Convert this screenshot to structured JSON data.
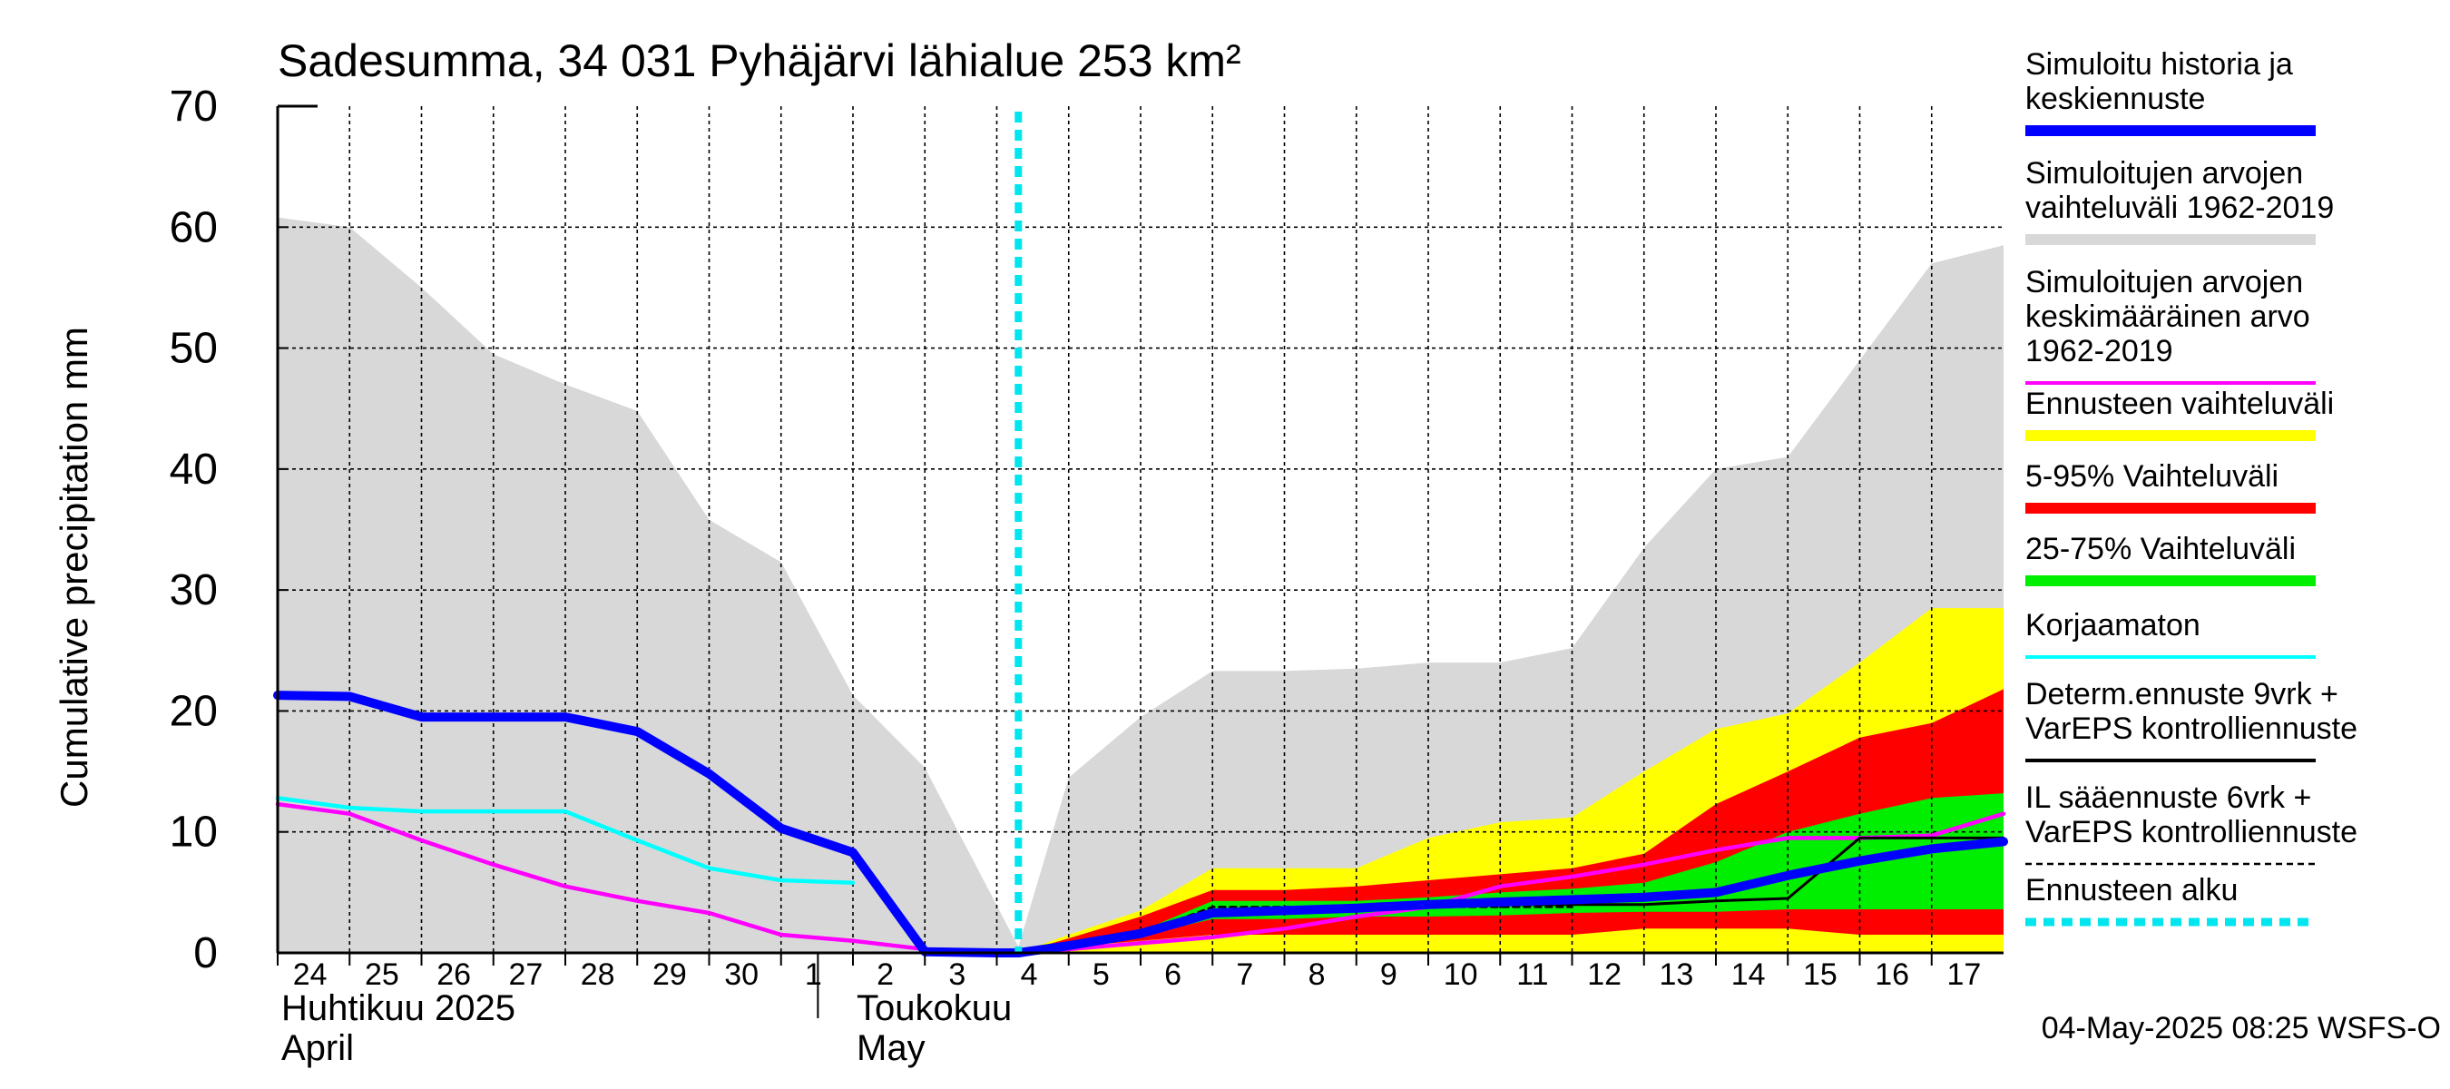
{
  "chart_data": {
    "type": "area",
    "title": "Sadesumma, 34 031 Pyhäjärvi lähialue 253 km²",
    "ylabel": "Cumulative precipitation   mm",
    "ylim": [
      0,
      70
    ],
    "yticks": [
      0,
      10,
      20,
      30,
      40,
      50,
      60,
      70
    ],
    "x_day_ticks": [
      "24",
      "25",
      "26",
      "27",
      "28",
      "29",
      "30",
      "1",
      "2",
      "3",
      "4",
      "5",
      "6",
      "7",
      "8",
      "9",
      "10",
      "11",
      "12",
      "13",
      "14",
      "15",
      "16",
      "17"
    ],
    "x_month_labels": [
      {
        "fi": "Huhtikuu  2025",
        "en": "April"
      },
      {
        "fi": "Toukokuu",
        "en": "May"
      }
    ],
    "grid": true,
    "legend_position": "right",
    "forecast_start_day": 10.3,
    "colors": {
      "history": "#0000ff",
      "range": "#d8d8d8",
      "mean": "#ff00ff",
      "forecast_range": "#ffff00",
      "p5_95": "#ff0000",
      "p25_75": "#00ee00",
      "uncorrected": "#00ffff",
      "determ": "#000000",
      "il": "#000000",
      "forecast_start": "#00e5ee"
    },
    "series": {
      "range_upper": {
        "x": [
          0,
          1,
          2,
          3,
          4,
          5,
          6,
          7,
          8,
          9,
          10.3,
          11,
          12,
          13,
          14,
          15,
          16,
          17,
          18,
          19,
          20,
          21,
          22,
          23,
          24
        ],
        "y": [
          60.8,
          60.0,
          55.0,
          49.5,
          47.0,
          44.8,
          35.8,
          32.3,
          21.3,
          15.3,
          0.5,
          14.5,
          19.5,
          23.3,
          23.3,
          23.5,
          24.0,
          24.0,
          25.2,
          33.5,
          40.0,
          41.0,
          49.0,
          57.0,
          58.5
        ]
      },
      "range_lower": {
        "x": [
          0,
          24
        ],
        "y": [
          0,
          0
        ]
      },
      "history": {
        "x": [
          0,
          1,
          2,
          3,
          4,
          5,
          6,
          7,
          8,
          9,
          10,
          10.3
        ],
        "y": [
          21.3,
          21.2,
          19.5,
          19.5,
          19.5,
          18.3,
          14.8,
          10.3,
          8.3,
          0.1,
          0.0,
          0.0
        ]
      },
      "uncorrected": {
        "x": [
          0,
          1,
          2,
          3,
          4,
          5,
          6,
          7,
          8
        ],
        "y": [
          12.8,
          12.0,
          11.7,
          11.7,
          11.7,
          9.3,
          7.0,
          6.0,
          5.8
        ]
      },
      "mean": {
        "x": [
          0,
          1,
          2,
          3,
          4,
          5,
          6,
          7,
          8,
          9,
          10,
          11,
          12,
          13,
          14,
          15,
          16,
          17,
          18,
          19,
          20,
          21,
          22,
          23,
          24
        ],
        "y": [
          12.3,
          11.5,
          9.3,
          7.3,
          5.5,
          4.3,
          3.3,
          1.5,
          1.0,
          0.3,
          0.0,
          0.3,
          0.8,
          1.3,
          2.0,
          3.0,
          3.8,
          5.5,
          6.3,
          7.3,
          8.5,
          9.5,
          9.5,
          9.7,
          11.5
        ]
      },
      "forecast_max": {
        "x": [
          10.3,
          11,
          12,
          13,
          14,
          15,
          16,
          17,
          18,
          19,
          20,
          21,
          22,
          23,
          24
        ],
        "y": [
          0,
          1.5,
          3.5,
          7.0,
          7.0,
          7.0,
          9.5,
          10.8,
          11.2,
          15.0,
          18.5,
          19.8,
          24.0,
          28.5,
          28.5
        ]
      },
      "forecast_min": {
        "x": [
          10.3,
          24
        ],
        "y": [
          0,
          0
        ]
      },
      "p95": {
        "x": [
          10.3,
          11,
          12,
          13,
          14,
          15,
          16,
          17,
          18,
          19,
          20,
          21,
          22,
          23,
          24
        ],
        "y": [
          0,
          1.2,
          3.0,
          5.2,
          5.2,
          5.5,
          6.0,
          6.5,
          7.0,
          8.2,
          12.3,
          15.0,
          17.8,
          19.0,
          21.8
        ]
      },
      "p5": {
        "x": [
          10.3,
          11,
          12,
          13,
          14,
          15,
          16,
          17,
          18,
          19,
          20,
          21,
          22,
          23,
          24
        ],
        "y": [
          0,
          0.5,
          1.0,
          1.5,
          1.5,
          1.5,
          1.5,
          1.5,
          1.5,
          2.0,
          2.0,
          2.0,
          1.5,
          1.5,
          1.5
        ]
      },
      "p75": {
        "x": [
          10.3,
          11,
          12,
          13,
          14,
          15,
          16,
          17,
          18,
          19,
          20,
          21,
          22,
          23,
          24
        ],
        "y": [
          0,
          0.8,
          1.8,
          4.3,
          4.3,
          4.3,
          4.6,
          5.0,
          5.3,
          5.8,
          7.5,
          10.0,
          11.5,
          12.8,
          13.2
        ]
      },
      "p25": {
        "x": [
          10.3,
          11,
          12,
          13,
          14,
          15,
          16,
          17,
          18,
          19,
          20,
          21,
          22,
          23,
          24
        ],
        "y": [
          0,
          0.6,
          1.4,
          2.8,
          2.8,
          3.0,
          3.0,
          3.1,
          3.3,
          3.4,
          3.4,
          3.6,
          3.6,
          3.6,
          3.6
        ]
      },
      "determ": {
        "x": [
          10.3,
          11,
          12,
          13,
          14,
          15,
          16,
          17,
          18,
          19,
          20,
          21,
          22,
          23,
          24
        ],
        "y": [
          0,
          0.8,
          1.5,
          3.5,
          3.7,
          3.8,
          4.0,
          4.0,
          4.0,
          4.0,
          4.3,
          4.5,
          9.5,
          9.5,
          9.5
        ]
      },
      "il": {
        "x": [
          10.3,
          11,
          12,
          13,
          14,
          15,
          16,
          17,
          18
        ],
        "y": [
          0,
          0.8,
          1.6,
          3.8,
          3.8,
          3.8,
          3.8,
          3.8,
          3.8
        ]
      },
      "median": {
        "x": [
          10.3,
          11,
          12,
          13,
          14,
          15,
          16,
          17,
          18,
          19,
          20,
          21,
          22,
          23,
          24
        ],
        "y": [
          0,
          0.6,
          1.6,
          3.3,
          3.5,
          3.7,
          4.0,
          4.2,
          4.4,
          4.6,
          5.0,
          6.4,
          7.6,
          8.6,
          9.2
        ]
      }
    },
    "legend": [
      {
        "key": "history",
        "lines": [
          "Simuloitu historia ja",
          "keskiennuste"
        ],
        "style": "thick"
      },
      {
        "key": "range",
        "lines": [
          "Simuloitujen arvojen",
          "vaihteluväli 1962-2019"
        ],
        "style": "thick"
      },
      {
        "key": "mean",
        "lines": [
          "Simuloitujen arvojen",
          "keskimääräinen arvo",
          "   1962-2019"
        ],
        "style": "thin"
      },
      {
        "key": "forecast_range",
        "lines": [
          "Ennusteen vaihteluväli"
        ],
        "style": "thick"
      },
      {
        "key": "p5_95",
        "lines": [
          "5-95% Vaihteluväli"
        ],
        "style": "thick"
      },
      {
        "key": "p25_75",
        "lines": [
          "25-75% Vaihteluväli"
        ],
        "style": "thick"
      },
      {
        "key": "uncorrected",
        "lines": [
          "Korjaamaton"
        ],
        "style": "thin"
      },
      {
        "key": "determ",
        "lines": [
          "Determ.ennuste 9vrk +",
          "VarEPS kontrolliennuste"
        ],
        "style": "thin"
      },
      {
        "key": "il",
        "lines": [
          "IL sääennuste 6vrk  +",
          "  VarEPS kontrolliennuste"
        ],
        "style": "dashed"
      },
      {
        "key": "forecast_start",
        "lines": [
          "Ennusteen alku"
        ],
        "style": "dotted"
      }
    ],
    "footer": "04-May-2025 08:25 WSFS-O"
  }
}
